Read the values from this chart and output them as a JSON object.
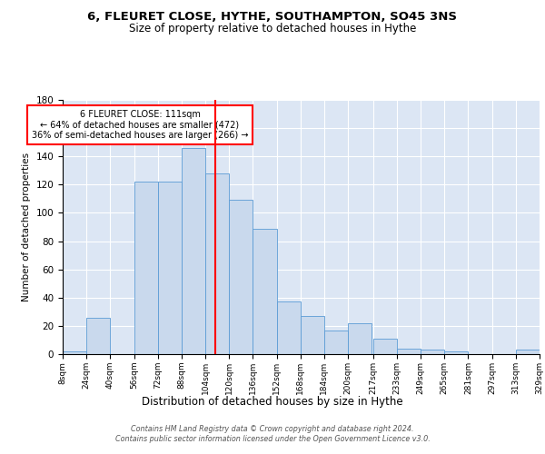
{
  "title": "6, FLEURET CLOSE, HYTHE, SOUTHAMPTON, SO45 3NS",
  "subtitle": "Size of property relative to detached houses in Hythe",
  "xlabel": "Distribution of detached houses by size in Hythe",
  "ylabel": "Number of detached properties",
  "bar_color": "#c9d9ed",
  "bar_edge_color": "#5b9bd5",
  "background_color": "#dce6f4",
  "grid_color": "#ffffff",
  "vline_x": 111,
  "vline_color": "red",
  "annotation_text": "6 FLEURET CLOSE: 111sqm\n← 64% of detached houses are smaller (472)\n36% of semi-detached houses are larger (266) →",
  "annotation_box_color": "white",
  "annotation_box_edge": "red",
  "footer": "Contains HM Land Registry data © Crown copyright and database right 2024.\nContains public sector information licensed under the Open Government Licence v3.0.",
  "bin_edges": [
    8,
    24,
    40,
    56,
    72,
    88,
    104,
    120,
    136,
    152,
    168,
    184,
    200,
    217,
    233,
    249,
    265,
    281,
    297,
    313,
    329
  ],
  "bin_labels": [
    "8sqm",
    "24sqm",
    "40sqm",
    "56sqm",
    "72sqm",
    "88sqm",
    "104sqm",
    "120sqm",
    "136sqm",
    "152sqm",
    "168sqm",
    "184sqm",
    "200sqm",
    "217sqm",
    "233sqm",
    "249sqm",
    "265sqm",
    "281sqm",
    "297sqm",
    "313sqm",
    "329sqm"
  ],
  "counts": [
    2,
    26,
    0,
    122,
    122,
    146,
    128,
    109,
    89,
    37,
    27,
    17,
    22,
    11,
    4,
    3,
    2,
    0,
    0,
    3
  ],
  "ylim": [
    0,
    180
  ],
  "yticks": [
    0,
    20,
    40,
    60,
    80,
    100,
    120,
    140,
    160,
    180
  ]
}
